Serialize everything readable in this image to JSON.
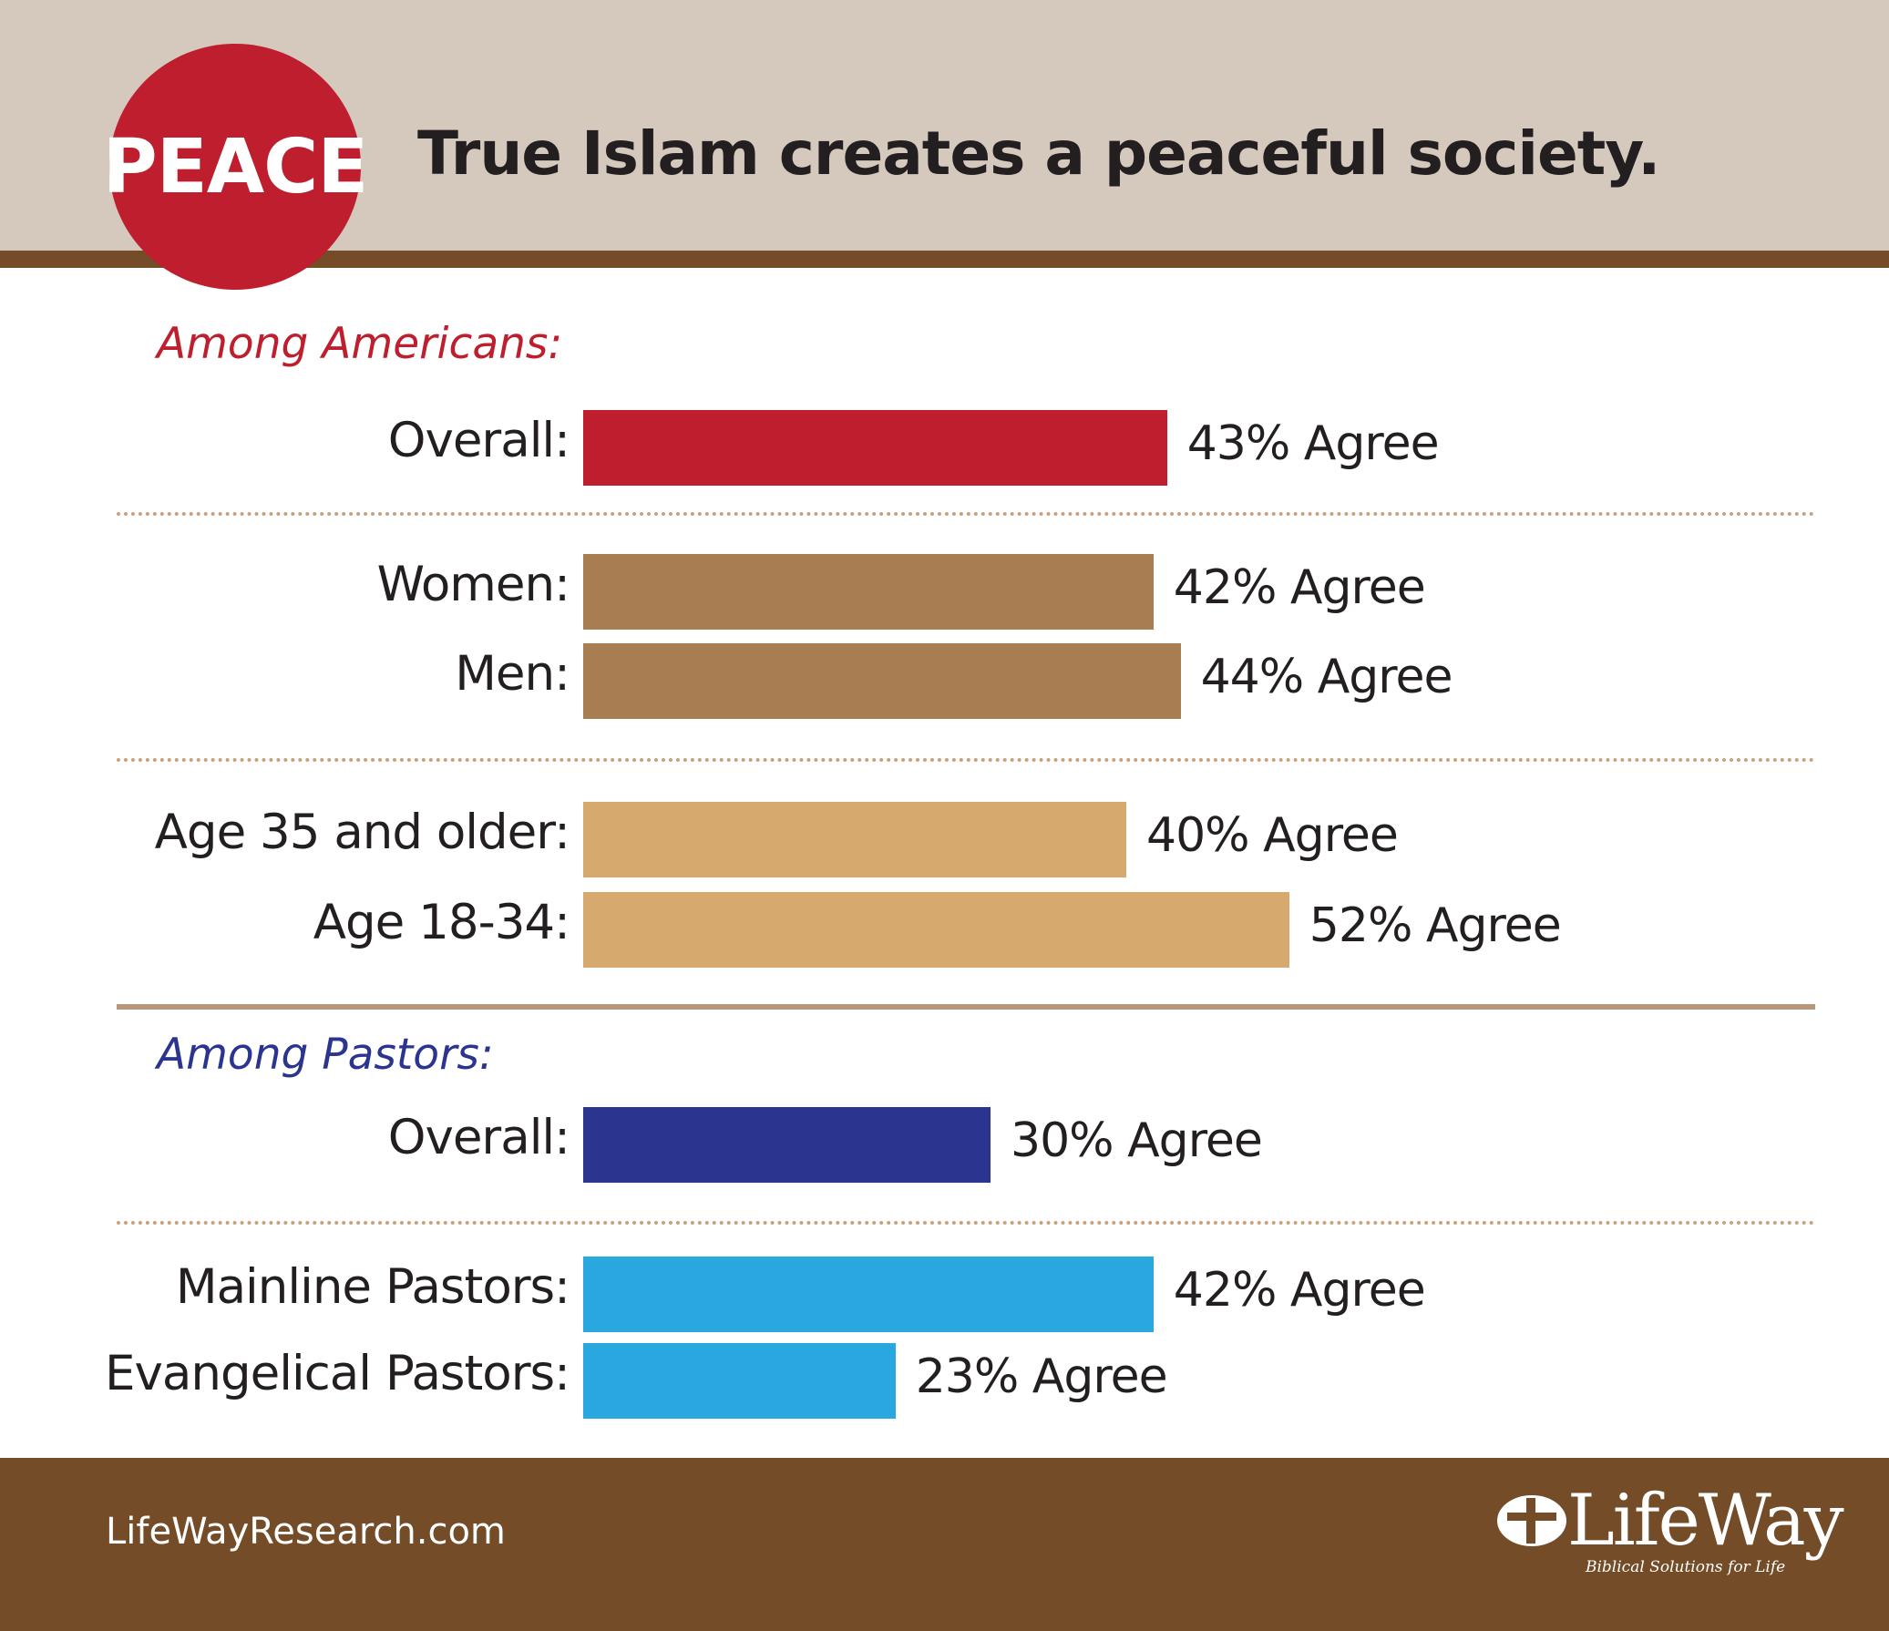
{
  "header": {
    "badge": "PEACE",
    "title": "True Islam creates a peaceful society."
  },
  "colors": {
    "header_bg": "#d5c8bd",
    "brown": "#744c28",
    "red": "#be1e2d",
    "gender": "#a77d51",
    "age": "#d6a96e",
    "navy": "#2b3590",
    "cyan": "#29a8e0"
  },
  "chart_data": {
    "type": "bar",
    "orientation": "horizontal",
    "title": "True Islam creates a peaceful society.",
    "value_suffix": "% Agree",
    "sections": [
      {
        "label": "Among Americans:",
        "color": "#be1e2d",
        "rows": [
          {
            "category": "Overall:",
            "value": 43,
            "text": "43% Agree",
            "color": "#be1e2d"
          },
          {
            "category": "Women:",
            "value": 42,
            "text": "42% Agree",
            "color": "#a77d51"
          },
          {
            "category": "Men:",
            "value": 44,
            "text": "44% Agree",
            "color": "#a77d51"
          },
          {
            "category": "Age 35 and older:",
            "value": 40,
            "text": "40% Agree",
            "color": "#d6a96e"
          },
          {
            "category": "Age 18-34:",
            "value": 52,
            "text": "52% Agree",
            "color": "#d6a96e"
          }
        ]
      },
      {
        "label": "Among Pastors:",
        "color": "#2b3590",
        "rows": [
          {
            "category": "Overall:",
            "value": 30,
            "text": "30% Agree",
            "color": "#2b3590"
          },
          {
            "category": "Mainline Pastors:",
            "value": 42,
            "text": "42% Agree",
            "color": "#29a8e0"
          },
          {
            "category": "Evangelical Pastors:",
            "value": 23,
            "text": "23% Agree",
            "color": "#29a8e0"
          }
        ]
      }
    ]
  },
  "footer": {
    "url": "LifeWayResearch.com",
    "logo_text": "LifeWay",
    "logo_tagline": "Biblical Solutions for Life"
  }
}
